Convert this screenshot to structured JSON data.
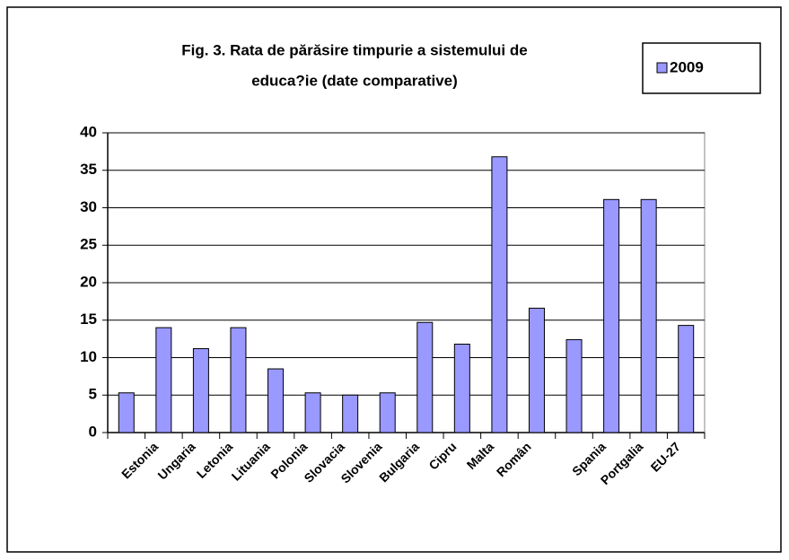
{
  "chart_data": {
    "type": "bar",
    "title": [
      "Fig. 3. Rata de părăsire timpurie a sistemului de",
      "educa?ie   (date comparative)"
    ],
    "categories": [
      null,
      "Estonia",
      "Ungaria",
      "Letonia",
      "Lituania",
      "Polonia",
      "Slovacia",
      "Slovenia",
      "Bulgaria",
      "Cipru",
      "Malta",
      "Român",
      null,
      "Spania",
      "Portgalia",
      "EU-27"
    ],
    "series": [
      {
        "name": "2009",
        "color": "#9999ff",
        "values": [
          5.3,
          14,
          11.2,
          14,
          8.5,
          5.3,
          5,
          5.3,
          14.7,
          11.8,
          36.8,
          16.6,
          12.4,
          31.1,
          31.1,
          14.3
        ]
      }
    ],
    "ylim": [
      0,
      40
    ],
    "yticks": [
      0,
      5,
      10,
      15,
      20,
      25,
      30,
      35,
      40
    ],
    "grid": true,
    "legend": "top-right"
  }
}
